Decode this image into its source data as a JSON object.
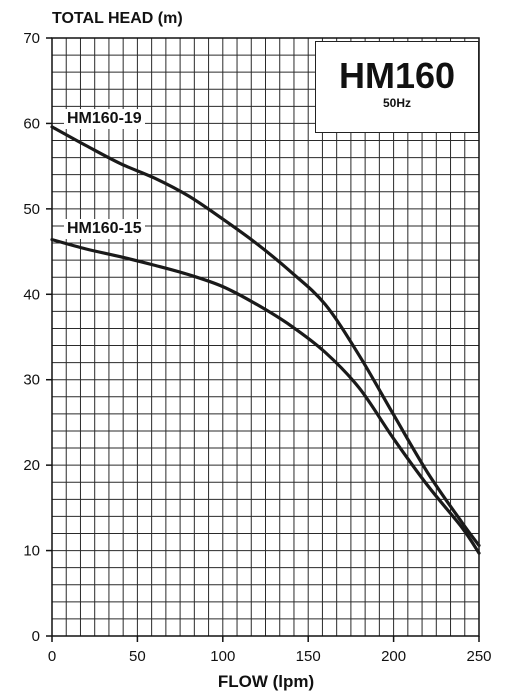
{
  "chart_data": {
    "type": "line",
    "ylabel": "TOTAL HEAD (m)",
    "xlabel": "FLOW (lpm)",
    "xlim": [
      0,
      250
    ],
    "ylim": [
      0,
      70
    ],
    "xticks": [
      0,
      50,
      100,
      150,
      200,
      250
    ],
    "yticks": [
      0,
      10,
      20,
      30,
      40,
      50,
      60,
      70
    ],
    "grid": true,
    "model": "HM160",
    "frequency": "50Hz",
    "series": [
      {
        "name": "HM160-19",
        "x": [
          0,
          20,
          40,
          60,
          80,
          100,
          120,
          140,
          160,
          180,
          200,
          220,
          240,
          250
        ],
        "y": [
          59.6,
          57.4,
          55.3,
          53.6,
          51.5,
          48.8,
          45.9,
          42.6,
          38.8,
          32.8,
          25.9,
          19.1,
          13.3,
          10.6
        ]
      },
      {
        "name": "HM160-15",
        "x": [
          0,
          20,
          40,
          60,
          80,
          100,
          120,
          140,
          160,
          180,
          200,
          220,
          240,
          250
        ],
        "y": [
          46.4,
          45.3,
          44.4,
          43.4,
          42.3,
          40.9,
          38.8,
          36.3,
          33.2,
          29.0,
          23.1,
          17.6,
          12.7,
          9.7
        ]
      }
    ]
  }
}
